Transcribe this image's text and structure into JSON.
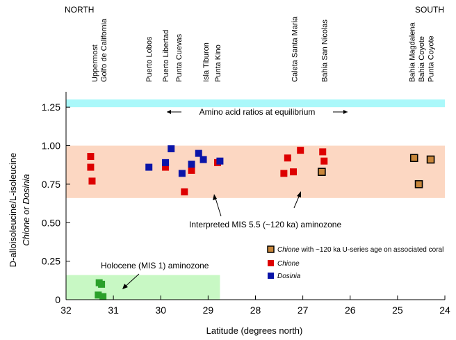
{
  "chart_data": {
    "type": "scatter",
    "title": "",
    "xlabel": "Latitude (degrees north)",
    "ylabel": {
      "line1": "D-alloisoleucine/L-isoleucine",
      "line2_part1": "Chione",
      "line2_part2": " or ",
      "line2_part3": "Dosinia"
    },
    "xlim": [
      32,
      24
    ],
    "ylim": [
      0,
      1.35
    ],
    "x_ticks": [
      32,
      31,
      30,
      29,
      28,
      27,
      26,
      25,
      24
    ],
    "y_ticks": [
      0,
      0.25,
      0.5,
      0.75,
      1.0,
      1.25
    ],
    "y_tick_labels": [
      "0",
      "0.25",
      "0.50",
      "0.75",
      "1.00",
      "1.25"
    ],
    "direction_labels": {
      "north": "NORTH",
      "south": "SOUTH"
    },
    "bands": [
      {
        "name": "equilibrium",
        "y0": 1.25,
        "y1": 1.3,
        "x0": 32,
        "x1": 24,
        "color": "#aaf8fa",
        "label": "Amino acid ratios at equilibrium"
      },
      {
        "name": "mis55",
        "y0": 0.66,
        "y1": 1.0,
        "x0": 32,
        "x1": 24,
        "color": "#fcd7c2"
      },
      {
        "name": "holocene",
        "y0": 0.0,
        "y1": 0.16,
        "x0": 32,
        "x1": 28.75,
        "color": "#c8f8c4"
      }
    ],
    "locations": [
      {
        "lines": [
          "Uppermost",
          "Golfo de California"
        ],
        "lat": 31.3
      },
      {
        "lines": [
          "Puerto Lobos"
        ],
        "lat": 30.25
      },
      {
        "lines": [
          "Puerto Libertad"
        ],
        "lat": 29.9
      },
      {
        "lines": [
          "Punta Cuevas"
        ],
        "lat": 29.62
      },
      {
        "lines": [
          "Isla Tiburon"
        ],
        "lat": 29.05
      },
      {
        "lines": [
          "Punta Kino"
        ],
        "lat": 28.8
      },
      {
        "lines": [
          "Caleta Santa Maria"
        ],
        "lat": 27.18
      },
      {
        "lines": [
          "Bahia San Nicolas"
        ],
        "lat": 26.55
      },
      {
        "lines": [
          "Bahia Magdalena"
        ],
        "lat": 24.7
      },
      {
        "lines": [
          "Bahia Coyote"
        ],
        "lat": 24.5
      },
      {
        "lines": [
          "Punta Coyote"
        ],
        "lat": 24.3
      }
    ],
    "series": [
      {
        "name": "Chione with ~120 ka U-series age on associated coral",
        "name_italic": "Chione",
        "name_rest": " with ~120 ka U-series age on associated coral",
        "color": "#c8863a",
        "stroke": "#000000",
        "points": [
          [
            26.6,
            0.83
          ],
          [
            24.65,
            0.92
          ],
          [
            24.55,
            0.75
          ],
          [
            24.3,
            0.91
          ]
        ]
      },
      {
        "name": "Chione",
        "color": "#dd0000",
        "points": [
          [
            31.48,
            0.93
          ],
          [
            31.48,
            0.86
          ],
          [
            31.45,
            0.77
          ],
          [
            29.9,
            0.86
          ],
          [
            29.5,
            0.7
          ],
          [
            29.35,
            0.84
          ],
          [
            28.8,
            0.89
          ],
          [
            27.4,
            0.82
          ],
          [
            27.32,
            0.92
          ],
          [
            27.2,
            0.83
          ],
          [
            27.05,
            0.97
          ],
          [
            26.58,
            0.96
          ],
          [
            26.55,
            0.9
          ]
        ]
      },
      {
        "name": "Dosinia",
        "color": "#0a14a8",
        "points": [
          [
            30.25,
            0.86
          ],
          [
            29.9,
            0.89
          ],
          [
            29.78,
            0.98
          ],
          [
            29.55,
            0.82
          ],
          [
            29.35,
            0.88
          ],
          [
            29.2,
            0.95
          ],
          [
            29.1,
            0.91
          ],
          [
            28.75,
            0.9
          ]
        ]
      },
      {
        "name": "Holocene",
        "color": "#2aa02a",
        "points": [
          [
            31.3,
            0.11
          ],
          [
            31.25,
            0.1
          ],
          [
            31.32,
            0.03
          ],
          [
            31.22,
            0.02
          ]
        ]
      }
    ],
    "annotations": [
      {
        "text": "Interpreted MIS 5.5 (~120 ka) aminozone"
      },
      {
        "text": "Holocene (MIS 1) aminozone"
      }
    ],
    "legend_placement": "right, middle"
  }
}
